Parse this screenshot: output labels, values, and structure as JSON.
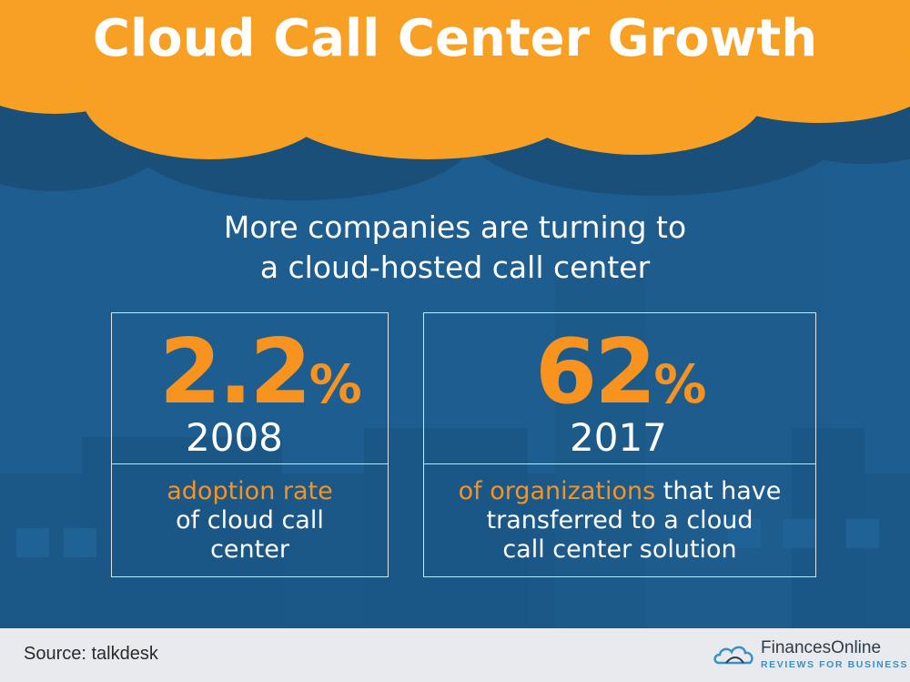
{
  "header": {
    "title": "Cloud Call Center Growth"
  },
  "subtitle": {
    "line1": "More companies are turning to",
    "line2": "a cloud-hosted call center"
  },
  "stats": [
    {
      "value": "2.2",
      "unit": "%",
      "year": "2008",
      "highlight": "adoption rate",
      "rest_lines": [
        "of cloud call",
        "center"
      ]
    },
    {
      "value": "62",
      "unit": "%",
      "year": "2017",
      "highlight": "of organizations",
      "rest_first": " that have",
      "rest_lines": [
        "transferred to a cloud",
        "call center solution"
      ]
    }
  ],
  "footer": {
    "source": "Source: talkdesk",
    "brand_name": "FinancesOnline",
    "brand_tagline": "REVIEWS FOR BUSINESS"
  },
  "colors": {
    "background": "#1d5d8f",
    "accent": "#f7931e",
    "footer": "#e8eaed"
  },
  "icons": {
    "logo": "cloud-logo-icon"
  }
}
